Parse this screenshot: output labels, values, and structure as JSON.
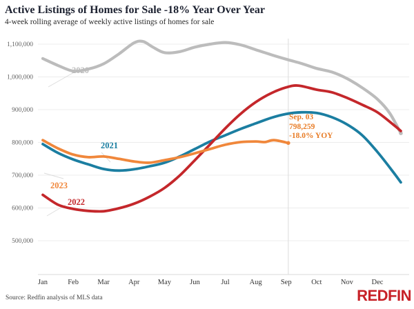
{
  "chart_data": {
    "type": "line",
    "title": "Active Listings of Homes for Sale -18% Year Over Year",
    "subtitle": "4-week rolling average of weekly active listings of homes for sale",
    "x_labels": [
      "Jan",
      "Feb",
      "Mar",
      "Apr",
      "May",
      "Jun",
      "Jul",
      "Aug",
      "Sep",
      "Oct",
      "Nov",
      "Dec"
    ],
    "x_index_unit": "months from Jan 1 (0 = Jan 1)",
    "ylim": [
      500000,
      1100000
    ],
    "grid": "horizontal",
    "y_ticks": [
      {
        "label": "1,100,000",
        "value": 1100000
      },
      {
        "label": "1,000,000",
        "value": 1000000
      },
      {
        "label": "900,000",
        "value": 900000
      },
      {
        "label": "800,000",
        "value": 800000
      },
      {
        "label": "700,000",
        "value": 700000
      },
      {
        "label": "600,000",
        "value": 600000
      },
      {
        "label": "500,000",
        "value": 500000
      }
    ],
    "marker_line_x_index": 8.07,
    "series": [
      {
        "name": "2020",
        "color": "#BCBCBC",
        "width": 4.2,
        "points": [
          [
            0,
            1056000
          ],
          [
            0.5,
            1035000
          ],
          [
            1,
            1018000
          ],
          [
            1.5,
            1024000
          ],
          [
            2,
            1040000
          ],
          [
            2.5,
            1070000
          ],
          [
            3,
            1104000
          ],
          [
            3.3,
            1108000
          ],
          [
            3.6,
            1092000
          ],
          [
            4,
            1074000
          ],
          [
            4.5,
            1077000
          ],
          [
            5,
            1091000
          ],
          [
            5.5,
            1100000
          ],
          [
            6,
            1105000
          ],
          [
            6.5,
            1098000
          ],
          [
            7,
            1083000
          ],
          [
            7.5,
            1068000
          ],
          [
            8,
            1054000
          ],
          [
            8.5,
            1041000
          ],
          [
            9,
            1026000
          ],
          [
            9.5,
            1015000
          ],
          [
            10,
            995000
          ],
          [
            10.5,
            967000
          ],
          [
            11,
            932000
          ],
          [
            11.4,
            890000
          ],
          [
            11.77,
            828000
          ]
        ]
      },
      {
        "name": "2021",
        "color": "#1B7EA1",
        "width": 3.8,
        "points": [
          [
            0,
            795000
          ],
          [
            0.5,
            768000
          ],
          [
            1,
            748000
          ],
          [
            1.5,
            733000
          ],
          [
            2,
            719000
          ],
          [
            2.5,
            714000
          ],
          [
            3,
            718000
          ],
          [
            3.5,
            727000
          ],
          [
            4,
            738000
          ],
          [
            4.5,
            757000
          ],
          [
            5,
            780000
          ],
          [
            5.5,
            803000
          ],
          [
            6,
            822000
          ],
          [
            6.5,
            841000
          ],
          [
            7,
            858000
          ],
          [
            7.5,
            875000
          ],
          [
            8,
            887000
          ],
          [
            8.5,
            892000
          ],
          [
            9,
            890000
          ],
          [
            9.5,
            877000
          ],
          [
            10,
            855000
          ],
          [
            10.5,
            822000
          ],
          [
            11,
            771000
          ],
          [
            11.5,
            712000
          ],
          [
            11.77,
            678000
          ]
        ]
      },
      {
        "name": "2022",
        "color": "#C4272B",
        "width": 3.8,
        "points": [
          [
            0,
            640000
          ],
          [
            0.5,
            610000
          ],
          [
            1,
            597000
          ],
          [
            1.5,
            591000
          ],
          [
            2,
            590000
          ],
          [
            2.5,
            599000
          ],
          [
            3,
            613000
          ],
          [
            3.5,
            634000
          ],
          [
            4,
            661000
          ],
          [
            4.5,
            699000
          ],
          [
            5,
            746000
          ],
          [
            5.5,
            794000
          ],
          [
            6,
            843000
          ],
          [
            6.5,
            887000
          ],
          [
            7,
            923000
          ],
          [
            7.5,
            950000
          ],
          [
            8,
            968000
          ],
          [
            8.4,
            973486
          ],
          [
            9,
            961000
          ],
          [
            9.5,
            953000
          ],
          [
            10,
            936000
          ],
          [
            10.5,
            915000
          ],
          [
            11,
            892000
          ],
          [
            11.5,
            856000
          ],
          [
            11.77,
            835000
          ]
        ]
      },
      {
        "name": "2023",
        "color": "#F0873B",
        "width": 3.8,
        "points": [
          [
            0,
            807000
          ],
          [
            0.5,
            782000
          ],
          [
            1,
            763000
          ],
          [
            1.5,
            755000
          ],
          [
            2,
            757000
          ],
          [
            2.5,
            750000
          ],
          [
            3,
            742000
          ],
          [
            3.5,
            738000
          ],
          [
            4,
            746000
          ],
          [
            4.5,
            755000
          ],
          [
            5,
            767000
          ],
          [
            5.5,
            780000
          ],
          [
            6,
            793000
          ],
          [
            6.5,
            801000
          ],
          [
            7,
            803000
          ],
          [
            7.3,
            801000
          ],
          [
            7.6,
            807000
          ],
          [
            8.07,
            798259
          ]
        ]
      }
    ],
    "annotation": {
      "lines": [
        "Sep. 03",
        "798,259",
        "-18.0% YOY"
      ],
      "color": "#E87C26",
      "x_index": 8.07,
      "value": 798259
    }
  },
  "footer": {
    "source": "Source: Redfin analysis of MLS data",
    "logo": "REDFIN"
  }
}
